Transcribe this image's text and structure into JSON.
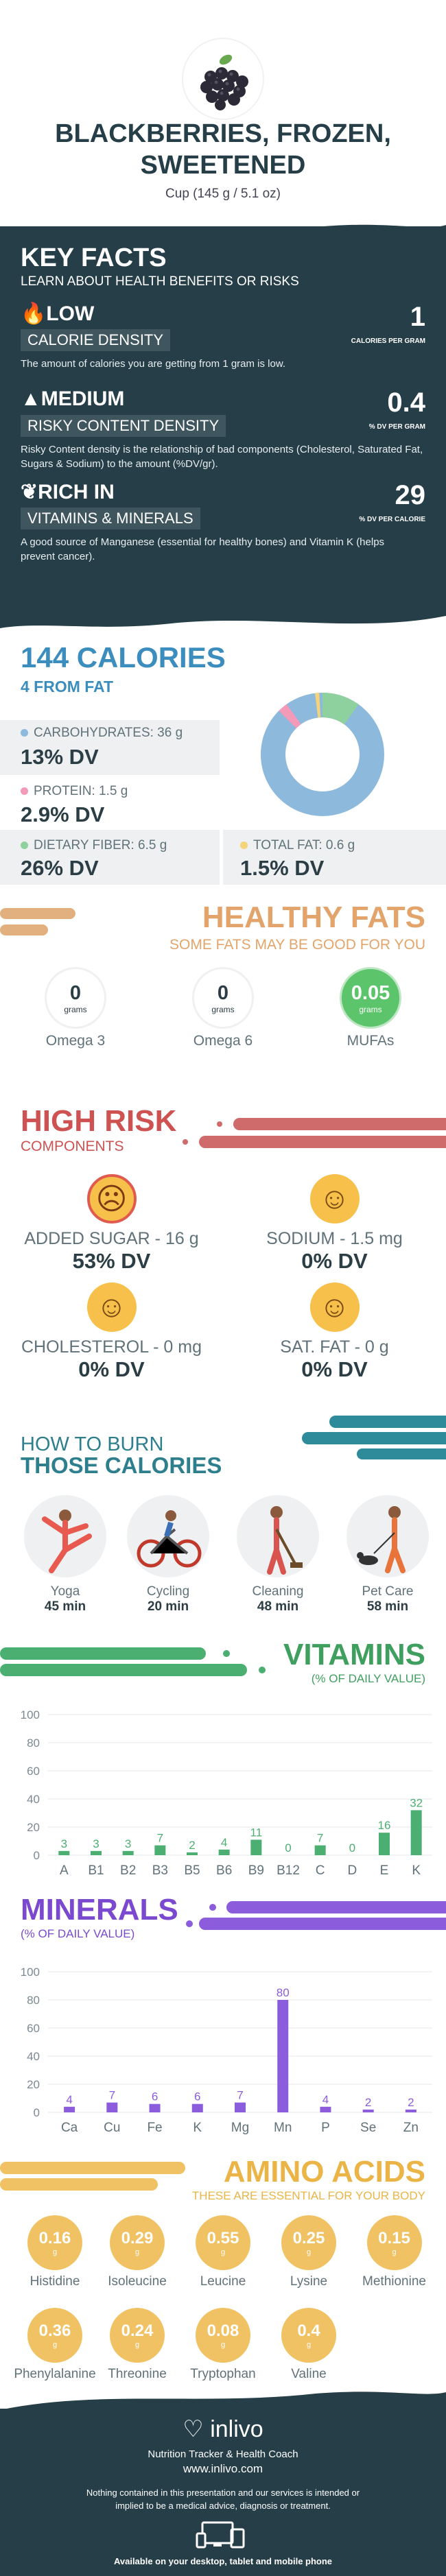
{
  "header": {
    "title": "BLACKBERRIES, FROZEN, SWEETENED",
    "serving": "Cup (145 g / 5.1 oz)"
  },
  "key_facts": {
    "title": "KEY FACTS",
    "subtitle": "LEARN ABOUT HEALTH BENEFITS OR RISKS",
    "items": [
      {
        "level": "LOW",
        "label": "CALORIE DENSITY",
        "desc": "The amount of calories you are getting from 1 gram is low.",
        "value": "1",
        "unit": "CALORIES PER GRAM",
        "icon": "flame-icon"
      },
      {
        "level": "MEDIUM",
        "label": "RISKY CONTENT DENSITY",
        "desc": "Risky Content density is the relationship of bad components (Cholesterol, Saturated Fat, Sugars & Sodium) to the amount (%DV/gr).",
        "value": "0.4",
        "unit": "% DV PER GRAM",
        "icon": "warning-icon"
      },
      {
        "level": "RICH  IN",
        "label": "VITAMINS & MINERALS",
        "desc": "A good source of Manganese (essential for healthy bones) and Vitamin K (helps prevent cancer).",
        "value": "29",
        "unit": "% DV PER CALORIE",
        "icon": "leaf-icon"
      }
    ]
  },
  "calories": {
    "title": "144 CALORIES",
    "from_fat": "4 FROM FAT",
    "carbs_label": "CARBOHYDRATES: 36 g",
    "carbs_dv": "13% DV",
    "protein_label": "PROTEIN: 1.5 g",
    "protein_dv": "2.9% DV",
    "fiber_label": "DIETARY FIBER: 6.5 g",
    "fiber_dv": "26% DV",
    "fat_label": "TOTAL FAT: 0.6 g",
    "fat_dv": "1.5% DV",
    "colors": {
      "carbs": "#8cb9dc",
      "protein": "#f29ab7",
      "fiber": "#8fd19e",
      "fat": "#f4d37a"
    }
  },
  "healthy_fats": {
    "title": "HEALTHY FATS",
    "subtitle": "SOME FATS MAY BE GOOD FOR YOU",
    "items": [
      {
        "name": "Omega 3",
        "value": "0",
        "unit": "grams"
      },
      {
        "name": "Omega 6",
        "value": "0",
        "unit": "grams"
      },
      {
        "name": "MUFAs",
        "value": "0.05",
        "unit": "grams"
      }
    ]
  },
  "high_risk": {
    "title": "HIGH RISK",
    "subtitle": "COMPONENTS",
    "items": [
      {
        "label": "ADDED SUGAR - 16 g",
        "dv": "53% DV",
        "face": "☹"
      },
      {
        "label": "SODIUM - 1.5 mg",
        "dv": "0% DV",
        "face": "☺"
      },
      {
        "label": "CHOLESTEROL - 0 mg",
        "dv": "0% DV",
        "face": "☺"
      },
      {
        "label": "SAT. FAT - 0 g",
        "dv": "0% DV",
        "face": "☺"
      }
    ]
  },
  "burn": {
    "title1": "HOW TO BURN",
    "title2": "THOSE CALORIES",
    "items": [
      {
        "name": "Yoga",
        "minutes": "45 min"
      },
      {
        "name": "Cycling",
        "minutes": "20 min"
      },
      {
        "name": "Cleaning",
        "minutes": "48 min"
      },
      {
        "name": "Pet Care",
        "minutes": "58 min"
      }
    ]
  },
  "vitamins_title": "VITAMINS",
  "vitamins_sub": "(% OF DAILY VALUE)",
  "minerals_title": "MINERALS",
  "minerals_sub": "(% OF DAILY VALUE)",
  "chart_data": [
    {
      "type": "bar",
      "title": "VITAMINS",
      "categories": [
        "A",
        "B1",
        "B2",
        "B3",
        "B5",
        "B6",
        "B9",
        "B12",
        "C",
        "D",
        "E",
        "K"
      ],
      "values": [
        3,
        3,
        3,
        7,
        2,
        4,
        11,
        0,
        7,
        0,
        16,
        32
      ],
      "ylim": [
        0,
        100
      ],
      "yticks": [
        0,
        20,
        40,
        60,
        80,
        100
      ],
      "color": "#4caf72"
    },
    {
      "type": "bar",
      "title": "MINERALS",
      "categories": [
        "Ca",
        "Cu",
        "Fe",
        "K",
        "Mg",
        "Mn",
        "P",
        "Se",
        "Zn"
      ],
      "values": [
        4,
        7,
        6,
        6,
        7,
        80,
        4,
        2,
        2
      ],
      "ylim": [
        0,
        100
      ],
      "yticks": [
        0,
        20,
        40,
        60,
        80,
        100
      ],
      "color": "#8b5cdb"
    }
  ],
  "amino": {
    "title": "AMINO ACIDS",
    "subtitle": "THESE ARE ESSENTIAL FOR YOUR BODY",
    "items": [
      {
        "name": "Histidine",
        "value": "0.16",
        "unit": "g"
      },
      {
        "name": "Isoleucine",
        "value": "0.29",
        "unit": "g"
      },
      {
        "name": "Leucine",
        "value": "0.55",
        "unit": "g"
      },
      {
        "name": "Lysine",
        "value": "0.25",
        "unit": "g"
      },
      {
        "name": "Methionine",
        "value": "0.15",
        "unit": "g"
      },
      {
        "name": "Phenylalanine",
        "value": "0.36",
        "unit": "g"
      },
      {
        "name": "Threonine",
        "value": "0.24",
        "unit": "g"
      },
      {
        "name": "Tryptophan",
        "value": "0.08",
        "unit": "g"
      },
      {
        "name": "Valine",
        "value": "0.4",
        "unit": "g"
      }
    ]
  },
  "footer": {
    "brand": "inlivo",
    "tagline": "Nutrition Tracker & Health Coach",
    "url": "www.inlivo.com",
    "disclaimer": "Nothing contained in this presentation and our services is intended or implied to be a medical advice, diagnosis or treatment.",
    "available": "Available on your desktop, tablet and mobile phone"
  }
}
